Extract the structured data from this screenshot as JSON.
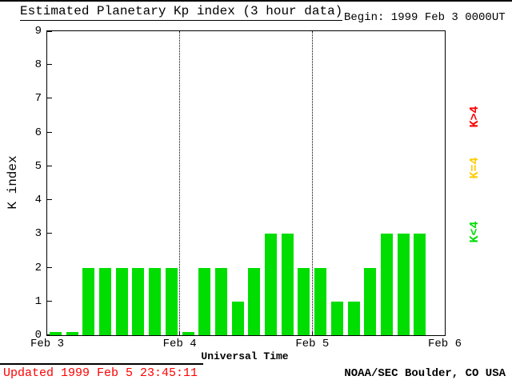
{
  "header": {
    "title": "Estimated Planetary Kp index (3 hour data)",
    "begin_label": "Begin: 1999 Feb 3 0000UT"
  },
  "legend": [
    {
      "label": "K>4",
      "color": "#ff0000"
    },
    {
      "label": "K=4",
      "color": "#ffcc00"
    },
    {
      "label": "K<4",
      "color": "#00dd00"
    }
  ],
  "footer": {
    "updated": "Updated 1999 Feb 5 23:45:11",
    "updated_color": "#ff0000",
    "credit": "NOAA/SEC Boulder, CO USA"
  },
  "chart_data": {
    "type": "bar",
    "title": "Estimated Planetary Kp index (3 hour data)",
    "xlabel": "Universal Time",
    "ylabel": "K index",
    "ylim": [
      0,
      9
    ],
    "y_ticks": [
      0,
      1,
      2,
      3,
      4,
      5,
      6,
      7,
      8,
      9
    ],
    "x_ticks": [
      "Feb 3",
      "Feb 4",
      "Feb 5",
      "Feb 6"
    ],
    "hours_per_bar": 3,
    "bars_per_day": 8,
    "days": [
      {
        "date": "Feb 3",
        "values": [
          0,
          0,
          2,
          2,
          2,
          2,
          2,
          2
        ]
      },
      {
        "date": "Feb 4",
        "values": [
          0,
          2,
          2,
          1,
          2,
          3,
          3,
          2
        ]
      },
      {
        "date": "Feb 5",
        "values": [
          2,
          1,
          1,
          2,
          3,
          3,
          3
        ]
      }
    ],
    "bar_colors": {
      "below4": "#00dd00",
      "equal4": "#ffcc00",
      "above4": "#ff0000"
    },
    "gridlines": "dotted vertical lines at day boundaries",
    "legend_position": "right"
  }
}
